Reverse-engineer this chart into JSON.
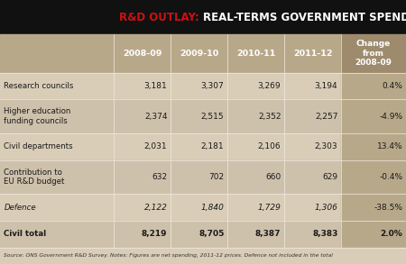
{
  "title_red": "R&D OUTLAY: ",
  "title_white": "REAL-TERMS GOVERNMENT SPENDING (£M)",
  "header_bg": "#b8a88a",
  "header_last_bg": "#9e8b6e",
  "row_bg": "#d9cdb8",
  "row_bg_alt": "#cec1ab",
  "row_last_col_bg": "#b8a88a",
  "title_bg": "#111111",
  "footer_bg": "#d9cdb8",
  "sep_color": "#f0ebe0",
  "columns": [
    "2008-09",
    "2009-10",
    "2010-11",
    "2011-12",
    "Change\nfrom\n2008-09"
  ],
  "rows": [
    {
      "label": "Research councils",
      "values": [
        "3,181",
        "3,307",
        "3,269",
        "3,194",
        "0.4%"
      ],
      "bold": false,
      "italic": false
    },
    {
      "label": "Higher education\nfunding councils",
      "values": [
        "2,374",
        "2,515",
        "2,352",
        "2,257",
        "-4.9%"
      ],
      "bold": false,
      "italic": false
    },
    {
      "label": "Civil departments",
      "values": [
        "2,031",
        "2,181",
        "2,106",
        "2,303",
        "13.4%"
      ],
      "bold": false,
      "italic": false
    },
    {
      "label": "Contribution to\nEU R&D budget",
      "values": [
        "632",
        "702",
        "660",
        "629",
        "-0.4%"
      ],
      "bold": false,
      "italic": false
    },
    {
      "label": "Defence",
      "values": [
        "2,122",
        "1,840",
        "1,729",
        "1,306",
        "-38.5%"
      ],
      "bold": false,
      "italic": true
    },
    {
      "label": "Civil total",
      "values": [
        "8,219",
        "8,705",
        "8,387",
        "8,383",
        "2.0%"
      ],
      "bold": true,
      "italic": false
    }
  ],
  "footer_text": "Source: ONS Government R&D Survey. Notes: Figures are net spending, 2011-12 prices. Defence not included in the total"
}
